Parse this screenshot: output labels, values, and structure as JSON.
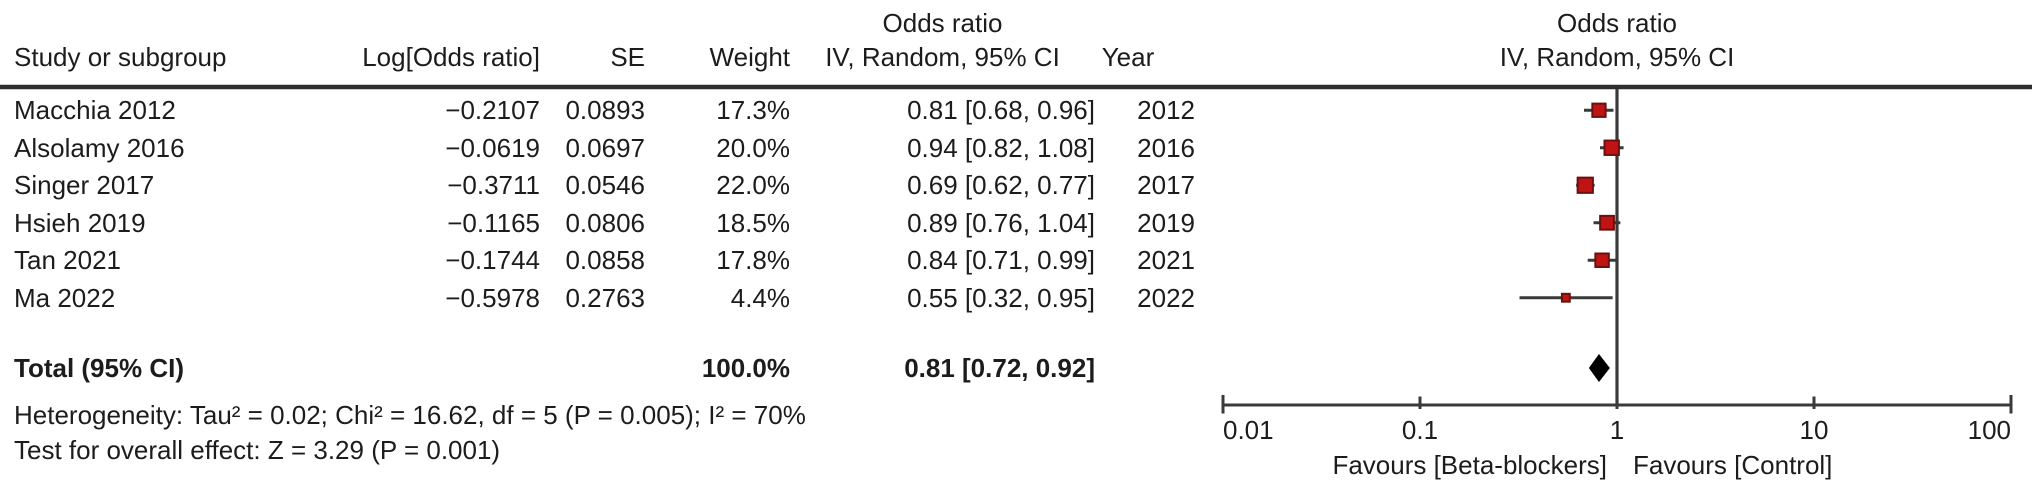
{
  "header": {
    "col_study": "Study or subgroup",
    "col_logor": "Log[Odds ratio]",
    "col_se": "SE",
    "col_weight": "Weight",
    "col_or_line1": "Odds ratio",
    "col_or_line2": "IV, Random, 95% CI",
    "col_year": "Year",
    "plot_line1": "Odds ratio",
    "plot_line2": "IV, Random, 95% CI"
  },
  "rows": [
    {
      "study": "Macchia 2012",
      "log_or": "−0.2107",
      "se": "0.0893",
      "weight": "17.3%",
      "or_ci": "0.81 [0.68, 0.96]",
      "year": "2012"
    },
    {
      "study": "Alsolamy 2016",
      "log_or": "−0.0619",
      "se": "0.0697",
      "weight": "20.0%",
      "or_ci": "0.94 [0.82, 1.08]",
      "year": "2016"
    },
    {
      "study": "Singer 2017",
      "log_or": "−0.3711",
      "se": "0.0546",
      "weight": "22.0%",
      "or_ci": "0.69 [0.62, 0.77]",
      "year": "2017"
    },
    {
      "study": "Hsieh 2019",
      "log_or": "−0.1165",
      "se": "0.0806",
      "weight": "18.5%",
      "or_ci": "0.89 [0.76, 1.04]",
      "year": "2019"
    },
    {
      "study": "Tan 2021",
      "log_or": "−0.1744",
      "se": "0.0858",
      "weight": "17.8%",
      "or_ci": "0.84 [0.71, 0.99]",
      "year": "2021"
    },
    {
      "study": "Ma 2022",
      "log_or": "−0.5978",
      "se": "0.2763",
      "weight": "4.4%",
      "or_ci": "0.55 [0.32, 0.95]",
      "year": "2022"
    }
  ],
  "total": {
    "label": "Total (95% CI)",
    "weight": "100.0%",
    "or_ci": "0.81 [0.72, 0.92]"
  },
  "footer": {
    "heterogeneity": "Heterogeneity: Tau² = 0.02; Chi² = 16.62, df = 5 (P = 0.005); I² = 70%",
    "overall_effect": "Test for overall effect: Z = 3.29 (P = 0.001)"
  },
  "axis": {
    "ticks": [
      {
        "label": "0.01",
        "value": 0.01
      },
      {
        "label": "0.1",
        "value": 0.1
      },
      {
        "label": "1",
        "value": 1
      },
      {
        "label": "10",
        "value": 10
      },
      {
        "label": "100",
        "value": 100
      }
    ],
    "favours_left": "Favours [Beta-blockers]",
    "favours_right": "Favours [Control]"
  },
  "chart_data": {
    "type": "forest",
    "effect_measure": "Odds ratio, IV, Random, 95% CI",
    "x_scale": "log10",
    "x_ticks": [
      0.01,
      0.1,
      1,
      10,
      100
    ],
    "x_range": [
      0.01,
      100
    ],
    "null_line": 1,
    "studies": [
      {
        "name": "Macchia 2012",
        "log_or": -0.2107,
        "se": 0.0893,
        "or": 0.81,
        "ci_low": 0.68,
        "ci_high": 0.96,
        "weight_pct": 17.3,
        "year": 2012
      },
      {
        "name": "Alsolamy 2016",
        "log_or": -0.0619,
        "se": 0.0697,
        "or": 0.94,
        "ci_low": 0.82,
        "ci_high": 1.08,
        "weight_pct": 20.0,
        "year": 2016
      },
      {
        "name": "Singer 2017",
        "log_or": -0.3711,
        "se": 0.0546,
        "or": 0.69,
        "ci_low": 0.62,
        "ci_high": 0.77,
        "weight_pct": 22.0,
        "year": 2017
      },
      {
        "name": "Hsieh 2019",
        "log_or": -0.1165,
        "se": 0.0806,
        "or": 0.89,
        "ci_low": 0.76,
        "ci_high": 1.04,
        "weight_pct": 18.5,
        "year": 2019
      },
      {
        "name": "Tan 2021",
        "log_or": -0.1744,
        "se": 0.0858,
        "or": 0.84,
        "ci_low": 0.71,
        "ci_high": 0.99,
        "weight_pct": 17.8,
        "year": 2021
      },
      {
        "name": "Ma 2022",
        "log_or": -0.5978,
        "se": 0.2763,
        "or": 0.55,
        "ci_low": 0.32,
        "ci_high": 0.95,
        "weight_pct": 4.4,
        "year": 2022
      }
    ],
    "total": {
      "or": 0.81,
      "ci_low": 0.72,
      "ci_high": 0.92,
      "weight_pct": 100.0
    },
    "heterogeneity": {
      "tau2": 0.02,
      "chi2": 16.62,
      "df": 5,
      "p": 0.005,
      "i2_pct": 70
    },
    "overall_effect": {
      "z": 3.29,
      "p": 0.001
    },
    "colors": {
      "marker_fill": "#c01414",
      "marker_stroke": "#6d0f0f",
      "line": "#3a3a3a",
      "rule": "#2e2e2e",
      "diamond": "#000000",
      "text": "#1c1c1c"
    }
  }
}
